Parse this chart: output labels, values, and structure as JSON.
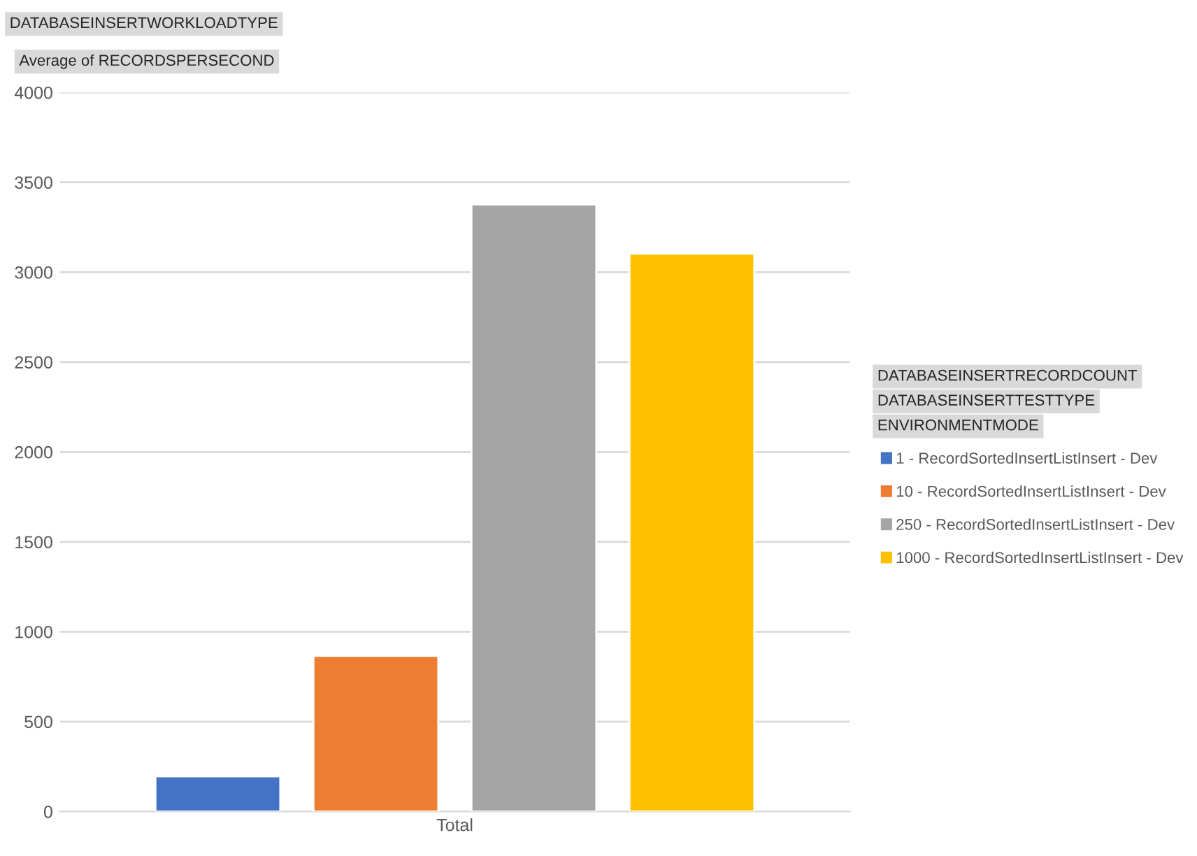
{
  "chart_data": {
    "type": "bar",
    "title": "DATABASEINSERTWORKLOADTYPE",
    "ylabel": "Average of RECORDSPERSECOND",
    "categories": [
      "Total"
    ],
    "series": [
      {
        "name": "1 - RecordSortedInsertListInsert - Dev",
        "color": "#4472c4",
        "values": [
          195
        ]
      },
      {
        "name": "10 - RecordSortedInsertListInsert - Dev",
        "color": "#ed7d31",
        "values": [
          866
        ]
      },
      {
        "name": "250 - RecordSortedInsertListInsert - Dev",
        "color": "#a5a5a5",
        "values": [
          3377
        ]
      },
      {
        "name": "1000 - RecordSortedInsertListInsert - Dev",
        "color": "#ffc000",
        "values": [
          3104
        ]
      }
    ],
    "ylim": [
      0,
      4000
    ],
    "yticks": [
      0,
      500,
      1000,
      1500,
      2000,
      2500,
      3000,
      3500,
      4000
    ],
    "grid": "y",
    "legend": "right",
    "annotations": [
      "DATABASEINSERTRECORDCOUNT",
      "DATABASEINSERTTESTTYPE",
      "ENVIRONMENTMODE"
    ]
  }
}
